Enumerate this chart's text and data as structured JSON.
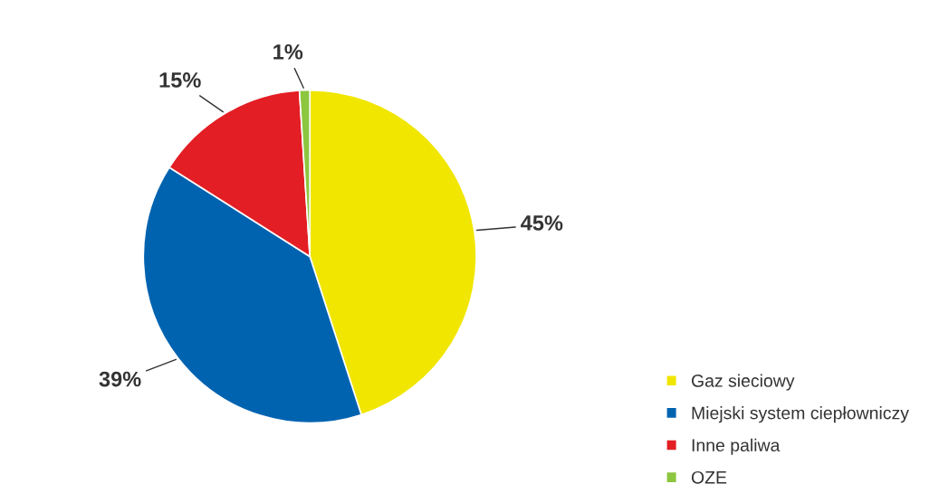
{
  "chart_data": {
    "type": "pie",
    "categories": [
      "Gaz sieciowy",
      "Miejski system ciepłowniczy",
      "Inne paliwa",
      "OZE"
    ],
    "values": [
      45,
      39,
      15,
      1
    ],
    "colors": [
      "#f0e600",
      "#0063b0",
      "#e31e24",
      "#8dc63f"
    ],
    "value_labels": [
      "45%",
      "39%",
      "15%",
      "1%"
    ],
    "legend": "bottom right"
  }
}
